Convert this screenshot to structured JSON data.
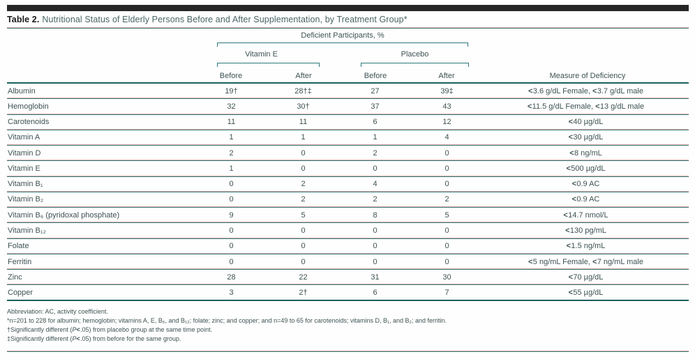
{
  "table_label": "Table 2.",
  "table_title": "Nutritional Status of Elderly Persons Before and After Supplementation, by Treatment Group*",
  "header": {
    "spanner": "Deficient Participants, %",
    "group_vitamin_e": "Vitamin E",
    "group_placebo": "Placebo",
    "sub_columns": [
      "Before",
      "After",
      "Before",
      "After"
    ],
    "measure_header": "Measure of Deficiency"
  },
  "rows": [
    {
      "label": "Albumin",
      "ve_before": "19†",
      "ve_after": "28†‡",
      "pl_before": "27",
      "pl_after": "39‡",
      "measure": "<3.6 g/dL Female,  <3.7 g/dL male"
    },
    {
      "label": "Hemoglobin",
      "ve_before": "32",
      "ve_after": "30†",
      "pl_before": "37",
      "pl_after": "43",
      "measure": "<11.5 g/dL Female,  <13 g/dL male"
    },
    {
      "label": "Carotenoids",
      "ve_before": "11",
      "ve_after": "11",
      "pl_before": "6",
      "pl_after": "12",
      "measure": "<40 µg/dL"
    },
    {
      "label": "Vitamin A",
      "ve_before": "1",
      "ve_after": "1",
      "pl_before": "1",
      "pl_after": "4",
      "measure": "<30 µg/dL"
    },
    {
      "label": "Vitamin D",
      "ve_before": "2",
      "ve_after": "0",
      "pl_before": "2",
      "pl_after": "0",
      "measure": "<8 ng/mL"
    },
    {
      "label": "Vitamin E",
      "ve_before": "1",
      "ve_after": "0",
      "pl_before": "0",
      "pl_after": "0",
      "measure": "<500 µg/dL"
    },
    {
      "label": "Vitamin B₁",
      "ve_before": "0",
      "ve_after": "2",
      "pl_before": "4",
      "pl_after": "0",
      "measure": "<0.9 AC"
    },
    {
      "label": "Vitamin B₂",
      "ve_before": "0",
      "ve_after": "2",
      "pl_before": "2",
      "pl_after": "2",
      "measure": "<0.9 AC"
    },
    {
      "label": "Vitamin B₆ (pyridoxal phosphate)",
      "ve_before": "9",
      "ve_after": "5",
      "pl_before": "8",
      "pl_after": "5",
      "measure": "<14.7 nmol/L"
    },
    {
      "label": "Vitamin B₁₂",
      "ve_before": "0",
      "ve_after": "0",
      "pl_before": "0",
      "pl_after": "0",
      "measure": "<130 pg/mL"
    },
    {
      "label": "Folate",
      "ve_before": "0",
      "ve_after": "0",
      "pl_before": "0",
      "pl_after": "0",
      "measure": "<1.5 ng/mL"
    },
    {
      "label": "Ferritin",
      "ve_before": "0",
      "ve_after": "0",
      "pl_before": "0",
      "pl_after": "0",
      "measure": "<5 ng/mL Female,  <7 ng/mL male"
    },
    {
      "label": "Zinc",
      "ve_before": "28",
      "ve_after": "22",
      "pl_before": "31",
      "pl_after": "30",
      "measure": "<70 µg/dL"
    },
    {
      "label": "Copper",
      "ve_before": "3",
      "ve_after": "2†",
      "pl_before": "6",
      "pl_after": "7",
      "measure": "<55 µg/dL"
    }
  ],
  "footnotes": [
    "Abbreviation: AC, activity coefficient.",
    "*n=201 to 228 for albumin; hemoglobin; vitamins A, E, B₆, and B₁₂; folate; zinc; and copper; and n=49 to 65 for carotenoids; vitamins D, B₁, and B₂; and ferritin.",
    "†Significantly different (P<.05) from placebo group at the same time point.",
    "‡Significantly different (P<.05) from before for the same group."
  ],
  "colors": {
    "rule_teal": "#2f7778",
    "rule_pink": "#eeb3ae",
    "heavy_rule": "#1e5e5f",
    "text": "#3e5252",
    "title_black": "#1a1a1a",
    "top_bar": "#262626"
  }
}
